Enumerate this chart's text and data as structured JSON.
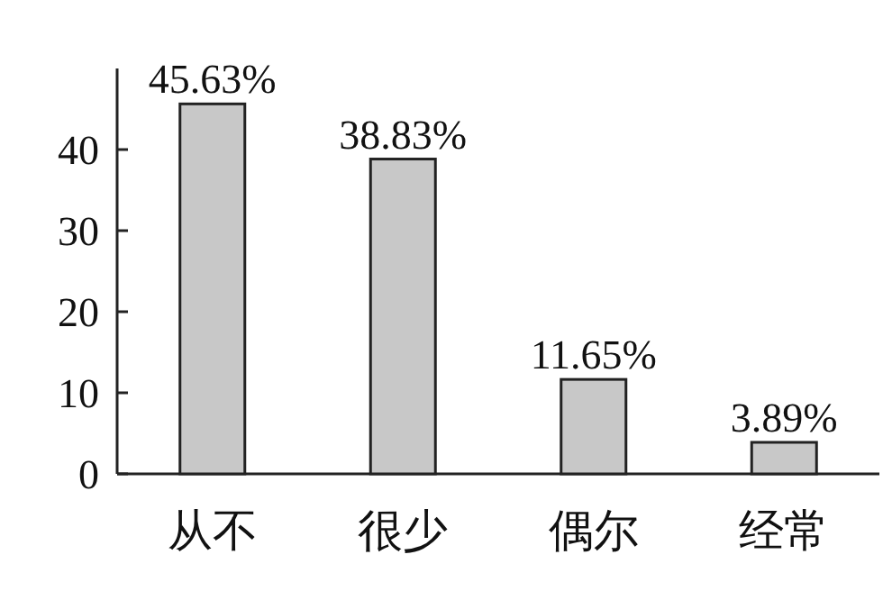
{
  "chart_data": {
    "type": "bar",
    "categories": [
      "从不",
      "很少",
      "偶尔",
      "经常"
    ],
    "values": [
      45.63,
      38.83,
      11.65,
      3.89
    ],
    "value_labels": [
      "45.63%",
      "38.83%",
      "11.65%",
      "3.89%"
    ],
    "color": "#c8c8c8",
    "ylim": [
      0,
      50
    ],
    "yticks": [
      0,
      10,
      20,
      30,
      40
    ]
  }
}
